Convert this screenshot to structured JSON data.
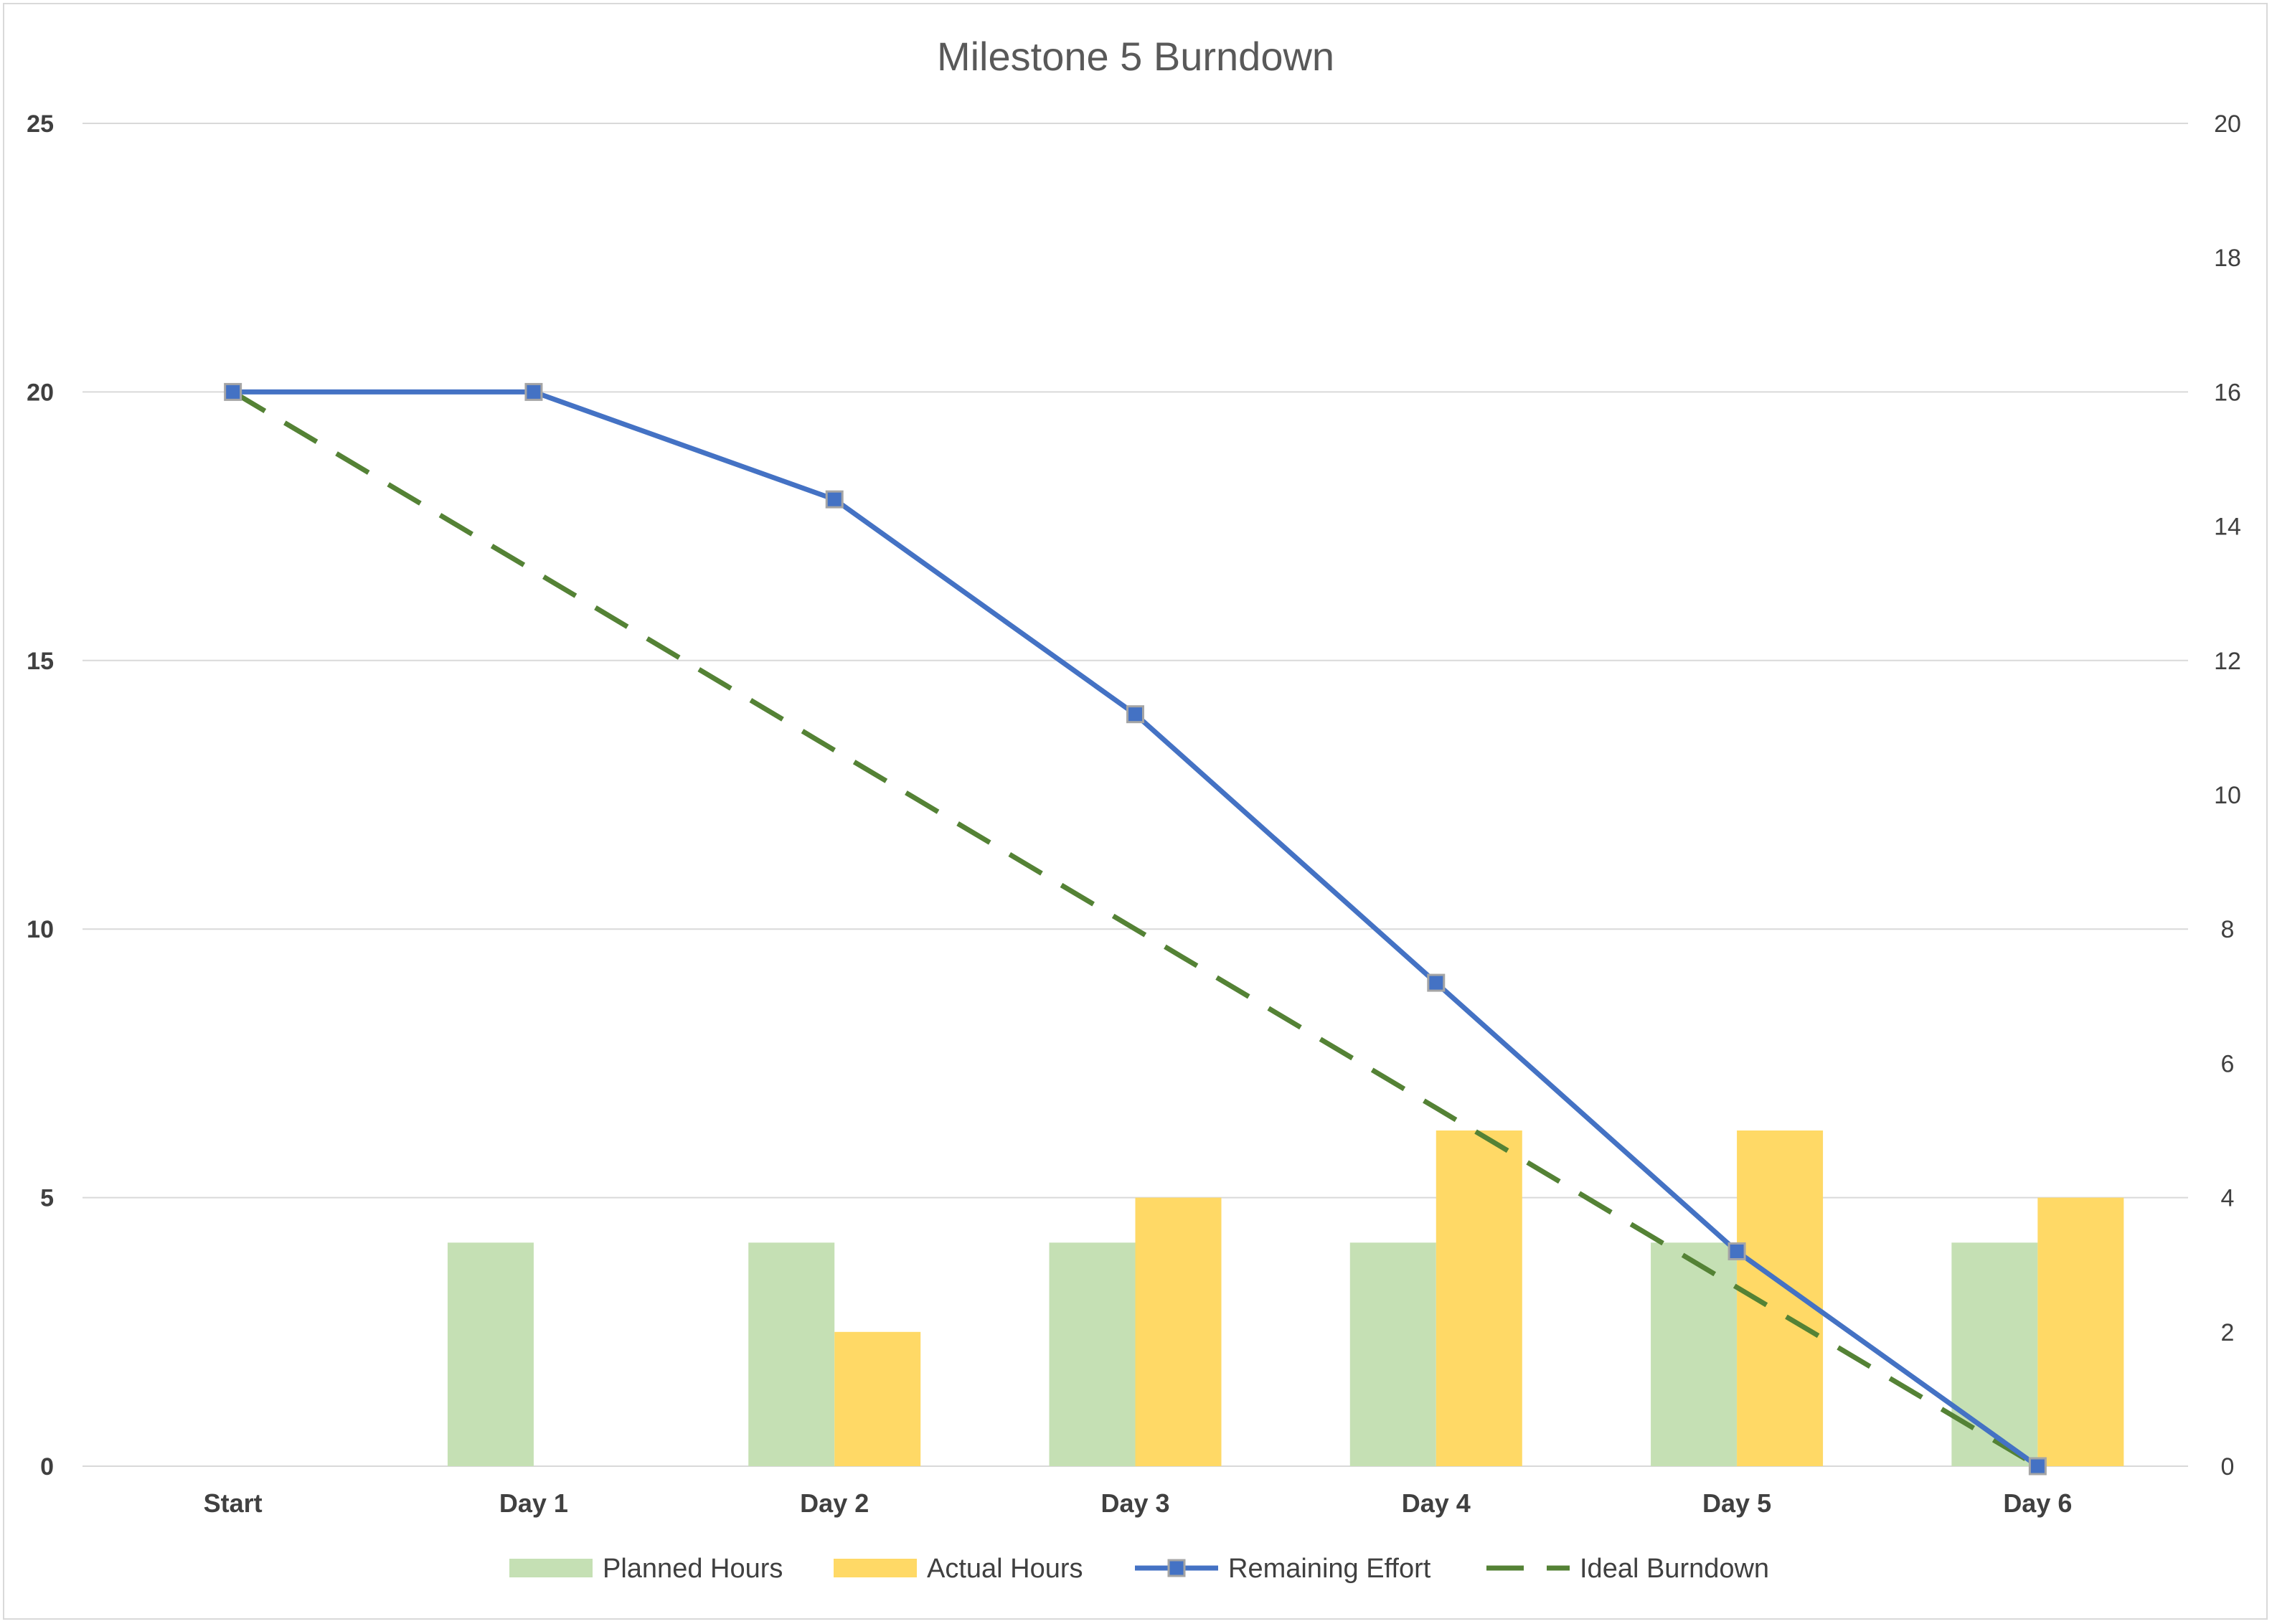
{
  "chart_data": {
    "type": "bar",
    "title": "Milestone 5 Burndown",
    "categories": [
      "Start",
      "Day  1",
      "Day  2",
      "Day  3",
      "Day 4",
      "Day 5",
      "Day 6"
    ],
    "y_left": {
      "ylim": [
        0,
        25
      ],
      "ticks": [
        "0",
        "5",
        "10",
        "15",
        "20",
        "25"
      ]
    },
    "y_right": {
      "ylim": [
        0,
        20
      ],
      "ticks": [
        "0",
        "2",
        "4",
        "6",
        "8",
        "10",
        "12",
        "14",
        "16",
        "18",
        "20"
      ]
    },
    "grid": true,
    "legend_position": "bottom",
    "series": [
      {
        "name": "Planned Hours",
        "kind": "bar",
        "axis": "right",
        "color": "#c5e0b4",
        "values": [
          null,
          3.33,
          3.33,
          3.33,
          3.33,
          3.33,
          3.33
        ]
      },
      {
        "name": "Actual Hours",
        "kind": "bar",
        "axis": "right",
        "color": "#ffd966",
        "values": [
          null,
          null,
          2,
          4,
          5,
          5,
          4
        ]
      },
      {
        "name": "Remaining Effort",
        "kind": "line",
        "axis": "left",
        "color": "#4472c4",
        "marker": "square",
        "values": [
          20,
          20,
          18,
          14,
          9,
          4,
          0
        ]
      },
      {
        "name": "Ideal Burndown",
        "kind": "line",
        "axis": "left",
        "color": "#548235",
        "dash": "long-dash",
        "values": [
          20,
          16.67,
          13.33,
          10,
          6.67,
          3.33,
          0
        ]
      }
    ]
  }
}
